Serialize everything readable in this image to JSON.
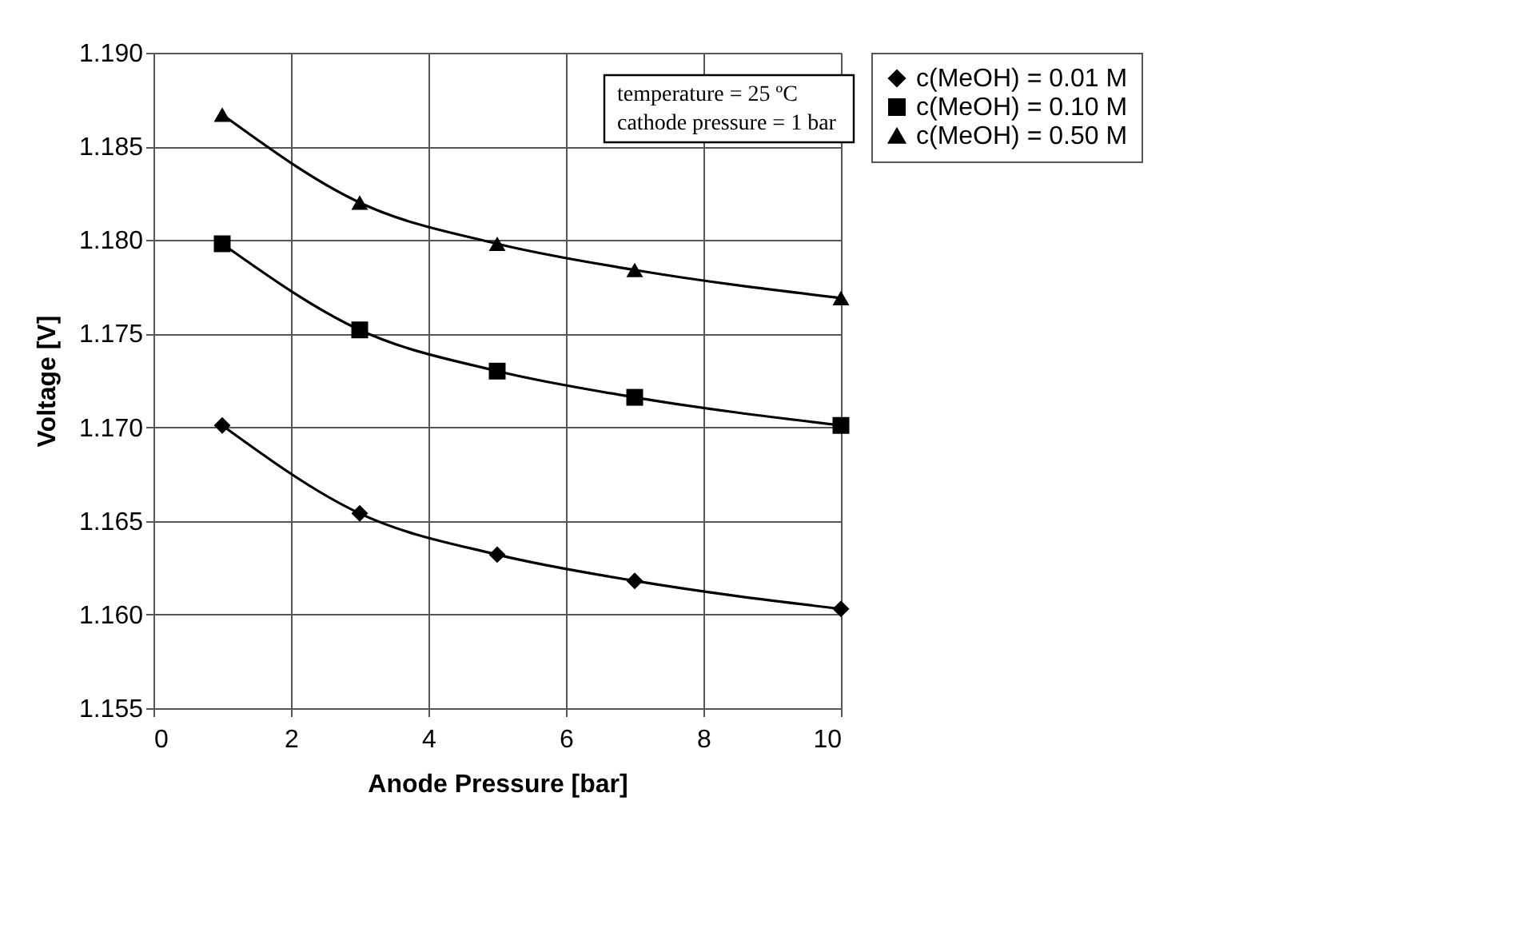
{
  "chart_data": {
    "type": "line",
    "xlabel": "Anode Pressure [bar]",
    "ylabel": "Voltage [V]",
    "x": [
      1,
      3,
      5,
      7,
      10
    ],
    "series": [
      {
        "name": "c(MeOH) = 0.01 M",
        "color": "#000000",
        "marker": "diamond",
        "values": [
          1.1701,
          1.1654,
          1.1632,
          1.1618,
          1.1603
        ]
      },
      {
        "name": "c(MeOH) = 0.10 M",
        "color": "#000000",
        "marker": "square",
        "values": [
          1.1798,
          1.1752,
          1.173,
          1.1716,
          1.1701
        ]
      },
      {
        "name": "c(MeOH) = 0.50 M",
        "color": "#000000",
        "marker": "triangle",
        "values": [
          1.1867,
          1.182,
          1.1798,
          1.1784,
          1.1769
        ]
      }
    ],
    "xlim": [
      0,
      10
    ],
    "xticks": [
      0,
      2,
      4,
      6,
      8,
      10
    ],
    "ylim": [
      1.155,
      1.19
    ],
    "yticks": [
      {
        "value": 1.155,
        "label": "1.155"
      },
      {
        "value": 1.16,
        "label": "1.160"
      },
      {
        "value": 1.165,
        "label": "1.165"
      },
      {
        "value": 1.17,
        "label": "1.170"
      },
      {
        "value": 1.175,
        "label": "1.175"
      },
      {
        "value": 1.18,
        "label": "1.180"
      },
      {
        "value": 1.185,
        "label": "1.185"
      },
      {
        "value": 1.19,
        "label": "1.190"
      }
    ],
    "grid": true,
    "legend": "right",
    "line_style": "solid",
    "annotations": [
      "temperature = 25 ºC",
      "cathode pressure = 1 bar"
    ]
  }
}
